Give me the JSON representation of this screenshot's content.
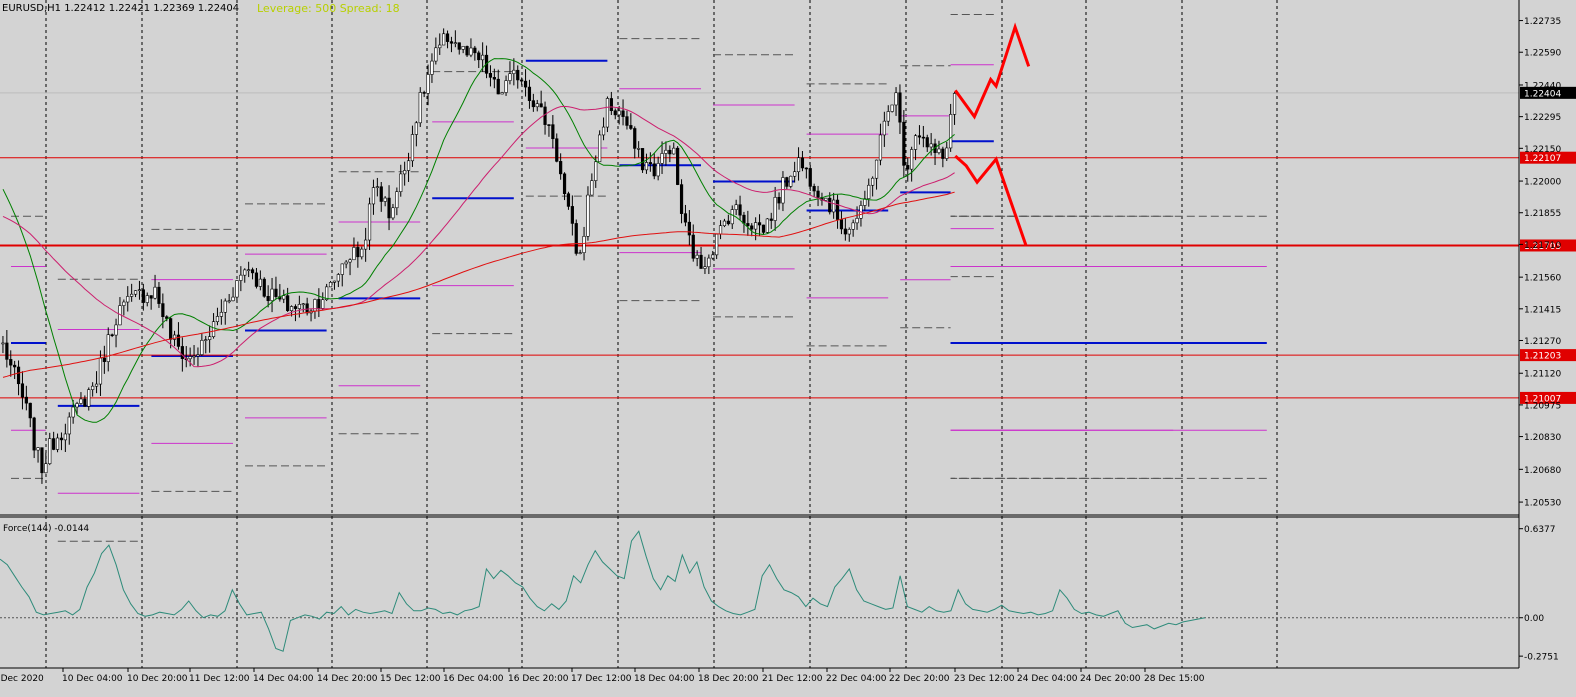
{
  "header": {
    "symbol_line": "EURUSD,H1  1.22412 1.22421 1.22369 1.22404",
    "info_line": "Leverage: 500 Spread: 18"
  },
  "colors": {
    "background": "#d3d3d3",
    "axis_text": "#000000",
    "candle": "#000000",
    "ma_fast": "#008000",
    "ma_mid": "#cc1f6e",
    "ma_slow": "#e01010",
    "level_line": "#e00000",
    "projection": "#ff0000",
    "pivot_blue": "#0010cc",
    "pivot_magenta": "#cc33cc",
    "force_line": "#2e8b7a"
  },
  "chart_data": [
    {
      "type": "candlestick",
      "name": "EURUSD,H1",
      "ylim": [
        1.2048,
        1.2282
      ],
      "y_ticks": [
        "1.22735",
        "1.22590",
        "1.22440",
        "1.22295",
        "1.22150",
        "1.22000",
        "1.21855",
        "1.21710",
        "1.21560",
        "1.21415",
        "1.21270",
        "1.21120",
        "1.20975",
        "1.20830",
        "1.20680",
        "1.20530"
      ],
      "x_tick_labels": [
        "9 Dec 2020",
        "10 Dec 04:00",
        "10 Dec 20:00",
        "11 Dec 12:00",
        "14 Dec 04:00",
        "14 Dec 20:00",
        "15 Dec 12:00",
        "16 Dec 04:00",
        "16 Dec 20:00",
        "17 Dec 12:00",
        "18 Dec 04:00",
        "18 Dec 20:00",
        "21 Dec 12:00",
        "22 Dec 04:00",
        "22 Dec 20:00",
        "23 Dec 12:00",
        "24 Dec 04:00",
        "24 Dec 20:00",
        "28 Dec 15:00"
      ],
      "current_price": "1.22404",
      "horizontal_levels": [
        {
          "value": 1.22107,
          "label": "1.22107",
          "width": 1
        },
        {
          "value": 1.21705,
          "label": "1.21705",
          "width": 2
        },
        {
          "value": 1.21203,
          "label": "1.21203",
          "width": 1
        },
        {
          "value": 1.21007,
          "label": "1.21007",
          "width": 1
        }
      ],
      "bars": 245,
      "anchors": [
        [
          0,
          1.2125
        ],
        [
          8,
          1.2098
        ],
        [
          14,
          1.2068
        ],
        [
          18,
          1.208
        ],
        [
          26,
          1.2093
        ],
        [
          34,
          1.2108
        ],
        [
          42,
          1.214
        ],
        [
          50,
          1.2148
        ],
        [
          56,
          1.215
        ],
        [
          62,
          1.2128
        ],
        [
          68,
          1.2118
        ],
        [
          74,
          1.2125
        ],
        [
          82,
          1.2145
        ],
        [
          90,
          1.2162
        ],
        [
          96,
          1.215
        ],
        [
          104,
          1.2143
        ],
        [
          112,
          1.2142
        ],
        [
          120,
          1.215
        ],
        [
          126,
          1.2165
        ],
        [
          132,
          1.2168
        ],
        [
          137,
          1.22
        ],
        [
          142,
          1.2185
        ],
        [
          148,
          1.2207
        ],
        [
          152,
          1.223
        ],
        [
          158,
          1.2255
        ],
        [
          164,
          1.2267
        ],
        [
          170,
          1.2258
        ],
        [
          176,
          1.2255
        ],
        [
          182,
          1.224
        ],
        [
          190,
          1.225
        ],
        [
          196,
          1.2235
        ],
        [
          202,
          1.2223
        ],
        [
          207,
          1.219
        ],
        [
          212,
          1.2163
        ],
        [
          216,
          1.2198
        ],
        [
          222,
          1.2235
        ],
        [
          228,
          1.223
        ],
        [
          234,
          1.221
        ],
        [
          240,
          1.2205
        ],
        [
          246,
          1.2218
        ],
        [
          250,
          1.2182
        ],
        [
          256,
          1.216
        ],
        [
          262,
          1.2172
        ],
        [
          268,
          1.2188
        ],
        [
          274,
          1.2182
        ],
        [
          280,
          1.2178
        ],
        [
          286,
          1.2195
        ],
        [
          292,
          1.221
        ],
        [
          298,
          1.22
        ],
        [
          304,
          1.219
        ],
        [
          310,
          1.2178
        ],
        [
          316,
          1.2185
        ],
        [
          322,
          1.2215
        ],
        [
          328,
          1.2243
        ],
        [
          332,
          1.2205
        ],
        [
          336,
          1.2225
        ],
        [
          340,
          1.2215
        ],
        [
          346,
          1.221
        ],
        [
          350,
          1.224
        ]
      ],
      "projection_paths": [
        [
          [
            351,
            1.22415
          ],
          [
            358,
            1.22295
          ],
          [
            364,
            1.22465
          ],
          [
            366,
            1.22435
          ],
          [
            373,
            1.22705
          ],
          [
            378,
            1.22525
          ]
        ],
        [
          [
            351,
            1.22115
          ],
          [
            355,
            1.2207
          ],
          [
            359,
            1.21995
          ],
          [
            366,
            1.221
          ],
          [
            377,
            1.21705
          ]
        ]
      ],
      "series": [
        {
          "name": "MA fast",
          "period": 20
        },
        {
          "name": "MA mid",
          "period": 50
        },
        {
          "name": "MA slow",
          "period": 200
        }
      ]
    },
    {
      "type": "line",
      "name": "Force(144)",
      "label": "Force(144) -0.0144",
      "ylim": [
        -0.36,
        0.7
      ],
      "y_ticks": [
        "0.6377",
        "0.00",
        "-0.2751"
      ],
      "zero_line": 0.0,
      "values": [
        0.42,
        0.38,
        0.3,
        0.22,
        0.15,
        0.04,
        0.02,
        0.03,
        0.04,
        0.05,
        0.02,
        0.06,
        0.22,
        0.32,
        0.46,
        0.52,
        0.38,
        0.2,
        0.1,
        0.03,
        0.01,
        0.02,
        0.04,
        0.03,
        0.02,
        0.06,
        0.12,
        0.05,
        0.0,
        0.02,
        0.01,
        0.05,
        0.2,
        0.1,
        0.02,
        0.03,
        0.04,
        -0.08,
        -0.22,
        -0.24,
        -0.02,
        0.0,
        0.02,
        0.01,
        -0.01,
        0.04,
        0.03,
        0.08,
        0.02,
        0.06,
        0.04,
        0.03,
        0.04,
        0.05,
        0.03,
        0.18,
        0.1,
        0.05,
        0.05,
        0.07,
        0.06,
        0.03,
        0.04,
        0.02,
        0.05,
        0.06,
        0.08,
        0.35,
        0.28,
        0.34,
        0.3,
        0.25,
        0.22,
        0.14,
        0.08,
        0.05,
        0.1,
        0.06,
        0.12,
        0.3,
        0.25,
        0.38,
        0.48,
        0.4,
        0.35,
        0.3,
        0.28,
        0.55,
        0.62,
        0.44,
        0.28,
        0.2,
        0.3,
        0.26,
        0.45,
        0.32,
        0.4,
        0.22,
        0.12,
        0.08,
        0.05,
        0.03,
        0.02,
        0.04,
        0.06,
        0.3,
        0.38,
        0.28,
        0.2,
        0.18,
        0.15,
        0.08,
        0.14,
        0.1,
        0.08,
        0.22,
        0.28,
        0.35,
        0.2,
        0.12,
        0.1,
        0.08,
        0.06,
        0.07,
        0.3,
        0.08,
        0.06,
        0.04,
        0.08,
        0.05,
        0.04,
        0.05,
        0.2,
        0.1,
        0.06,
        0.05,
        0.04,
        0.06,
        0.09,
        0.05,
        0.04,
        0.03,
        0.04,
        0.02,
        0.03,
        0.05,
        0.2,
        0.14,
        0.06,
        0.03,
        0.04,
        0.02,
        0.01,
        0.03,
        0.05,
        -0.04,
        -0.07,
        -0.06,
        -0.05,
        -0.08,
        -0.06,
        -0.04,
        -0.05,
        -0.03,
        -0.02,
        -0.01,
        0.0
      ],
      "color": "#2e8b7a"
    }
  ]
}
